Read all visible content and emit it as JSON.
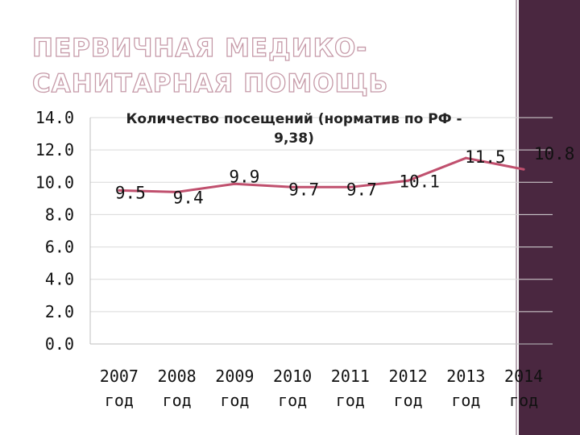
{
  "slide": {
    "title_lines": [
      "ПЕРВИЧНАЯ МЕДИКО-",
      "САНИТАРНАЯ ПОМОЩЬ"
    ],
    "accent_color": "#4a2740"
  },
  "chart_data": {
    "type": "line",
    "title_lines": [
      "Количество посещений (норматив по РФ -",
      "9,38)"
    ],
    "categories": [
      [
        "2007",
        "год"
      ],
      [
        "2008",
        "год"
      ],
      [
        "2009",
        "год"
      ],
      [
        "2010",
        "год"
      ],
      [
        "2011",
        "год"
      ],
      [
        "2012",
        "год"
      ],
      [
        "2013",
        "год"
      ],
      [
        "2014",
        "год"
      ]
    ],
    "values": [
      9.5,
      9.4,
      9.9,
      9.7,
      9.7,
      10.1,
      11.5,
      10.8
    ],
    "data_labels": [
      "9.5",
      "9.4",
      "9.9",
      "9.7",
      "9.7",
      "10.1",
      "11.5",
      "10.8"
    ],
    "y_ticks": [
      "0.0",
      "2.0",
      "4.0",
      "6.0",
      "8.0",
      "10.0",
      "12.0",
      "14.0"
    ],
    "ylim": [
      0,
      14
    ],
    "xlabel": "",
    "ylabel": "",
    "legend": "none",
    "grid": true,
    "line_color": "#c0506e",
    "grid_color": "#d9d9d9"
  }
}
